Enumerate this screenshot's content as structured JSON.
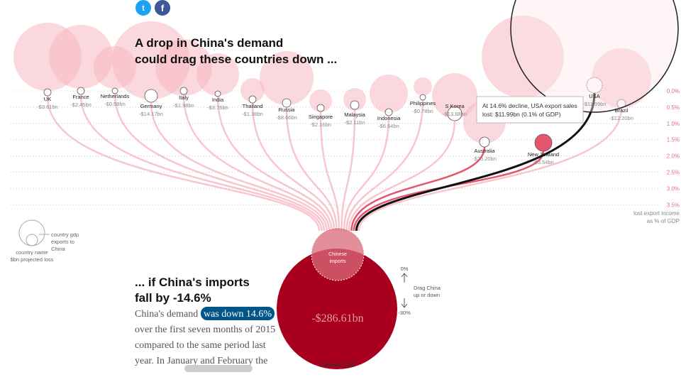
{
  "header": {
    "title_lines": [
      "A drop in China's demand",
      "could drag these countries down ..."
    ]
  },
  "countries": [
    {
      "name": "UK",
      "loss": "-$3.61bn"
    },
    {
      "name": "France",
      "loss": "-$2.45bn"
    },
    {
      "name": "Netherlands",
      "loss": "-$0.58bn"
    },
    {
      "name": "Germany",
      "loss": "-$14.17bn"
    },
    {
      "name": "Italy",
      "loss": "-$1.98bn"
    },
    {
      "name": "India",
      "loss": "-$3.76bn"
    },
    {
      "name": "Thailand",
      "loss": "-$1.38bn"
    },
    {
      "name": "Russia",
      "loss": "-$8.66bn"
    },
    {
      "name": "Singapore",
      "loss": "-$2.16bn"
    },
    {
      "name": "Malaysia",
      "loss": "-$2.11bn"
    },
    {
      "name": "Indonesia",
      "loss": "-$6.64bn"
    },
    {
      "name": "Philippines",
      "loss": "-$0.78bn"
    },
    {
      "name": "S Korea",
      "loss": "-$13.88bn"
    },
    {
      "name": "Australia",
      "loss": "-$25.20bn"
    },
    {
      "name": "New Zealand",
      "loss": "-$3.54bn"
    },
    {
      "name": "USA",
      "loss": "-$11.99bn"
    },
    {
      "name": "Brazil",
      "loss": "-$12.20bn"
    }
  ],
  "scale": {
    "labels": [
      "0.0%",
      "0.5%",
      "1.0%",
      "1.5%",
      "2.0%",
      "2.5%",
      "3.0%",
      "3.5%"
    ],
    "caption_lines": [
      "lost export income",
      "as % of GDP"
    ]
  },
  "tooltip": {
    "lines": [
      "At 14.6% decline, USA export sales",
      "lost: $11.99bn (0.1% of GDP)"
    ]
  },
  "legend": {
    "gdp_lines": [
      "country gdp",
      "exports to",
      "China"
    ],
    "name": "country name",
    "loss": "$bn projected loss"
  },
  "china": {
    "imports_lines": [
      "Chinese",
      "imports"
    ],
    "total": "-$286.61bn",
    "gdp": "Chinese GDP"
  },
  "slider": {
    "top": "0%",
    "hint_lines": [
      "Drag China",
      "up or down"
    ],
    "bottom": "-30%"
  },
  "story": {
    "heading_lines": [
      "... if China's imports",
      "fall by -14.6%"
    ],
    "lead": "China's demand",
    "highlight": "was down 14.6%",
    "lines": [
      "over the first seven months of 2015",
      "compared to the same period last",
      "year. In January and February the"
    ]
  }
}
